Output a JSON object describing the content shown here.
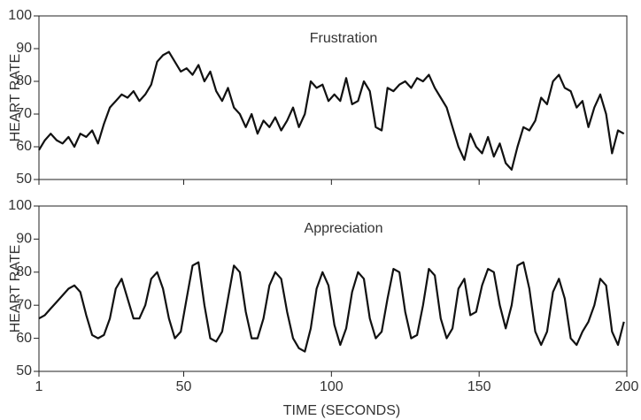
{
  "chart_data": [
    {
      "type": "line",
      "annotation": "Frustration",
      "ylabel": "HEART RATE",
      "xlim": [
        1,
        200
      ],
      "xticks": [
        1,
        50,
        100,
        150,
        200
      ],
      "ylim": [
        50,
        100
      ],
      "yticks": [
        50,
        60,
        70,
        80,
        90,
        100
      ],
      "x": [
        1,
        3,
        5,
        7,
        9,
        11,
        13,
        15,
        17,
        19,
        21,
        23,
        25,
        27,
        29,
        31,
        33,
        35,
        37,
        39,
        41,
        43,
        45,
        47,
        49,
        51,
        53,
        55,
        57,
        59,
        61,
        63,
        65,
        67,
        69,
        71,
        73,
        75,
        77,
        79,
        81,
        83,
        85,
        87,
        89,
        91,
        93,
        95,
        97,
        99,
        101,
        103,
        105,
        107,
        109,
        111,
        113,
        115,
        117,
        119,
        121,
        123,
        125,
        127,
        129,
        131,
        133,
        135,
        137,
        139,
        141,
        143,
        145,
        147,
        149,
        151,
        153,
        155,
        157,
        159,
        161,
        163,
        165,
        167,
        169,
        171,
        173,
        175,
        177,
        179,
        181,
        183,
        185,
        187,
        189,
        191,
        193,
        195,
        197,
        199
      ],
      "series": [
        {
          "color": "#111111",
          "values": [
            59,
            62,
            64,
            62,
            61,
            63,
            60,
            64,
            63,
            65,
            61,
            67,
            72,
            74,
            76,
            75,
            77,
            74,
            76,
            79,
            86,
            88,
            89,
            86,
            83,
            84,
            82,
            85,
            80,
            83,
            77,
            74,
            78,
            72,
            70,
            66,
            70,
            64,
            68,
            66,
            69,
            65,
            68,
            72,
            66,
            70,
            80,
            78,
            79,
            74,
            76,
            74,
            81,
            73,
            74,
            80,
            77,
            66,
            65,
            78,
            77,
            79,
            80,
            78,
            81,
            80,
            82,
            78,
            75,
            72,
            66,
            60,
            56,
            64,
            60,
            58,
            63,
            57,
            61,
            55,
            53,
            60,
            66,
            65,
            68,
            75,
            73,
            80,
            82,
            78,
            77,
            72,
            74,
            66,
            72,
            76,
            70,
            58,
            65,
            64
          ]
        }
      ]
    },
    {
      "type": "line",
      "annotation": "Appreciation",
      "ylabel": "HEART RATE",
      "xlabel": "TIME (SECONDS)",
      "xlim": [
        1,
        200
      ],
      "xticks": [
        1,
        50,
        100,
        150,
        200
      ],
      "ylim": [
        50,
        100
      ],
      "yticks": [
        50,
        60,
        70,
        80,
        90,
        100
      ],
      "x": [
        1,
        3,
        5,
        7,
        9,
        11,
        13,
        15,
        17,
        19,
        21,
        23,
        25,
        27,
        29,
        31,
        33,
        35,
        37,
        39,
        41,
        43,
        45,
        47,
        49,
        51,
        53,
        55,
        57,
        59,
        61,
        63,
        65,
        67,
        69,
        71,
        73,
        75,
        77,
        79,
        81,
        83,
        85,
        87,
        89,
        91,
        93,
        95,
        97,
        99,
        101,
        103,
        105,
        107,
        109,
        111,
        113,
        115,
        117,
        119,
        121,
        123,
        125,
        127,
        129,
        131,
        133,
        135,
        137,
        139,
        141,
        143,
        145,
        147,
        149,
        151,
        153,
        155,
        157,
        159,
        161,
        163,
        165,
        167,
        169,
        171,
        173,
        175,
        177,
        179,
        181,
        183,
        185,
        187,
        189,
        191,
        193,
        195,
        197,
        199
      ],
      "series": [
        {
          "color": "#111111",
          "values": [
            66,
            67,
            69,
            71,
            73,
            75,
            76,
            74,
            67,
            61,
            60,
            61,
            66,
            75,
            78,
            72,
            66,
            66,
            70,
            78,
            80,
            75,
            66,
            60,
            62,
            72,
            82,
            83,
            70,
            60,
            59,
            62,
            72,
            82,
            80,
            68,
            60,
            60,
            66,
            76,
            80,
            78,
            68,
            60,
            57,
            56,
            63,
            75,
            80,
            76,
            64,
            58,
            63,
            74,
            80,
            78,
            66,
            60,
            62,
            72,
            81,
            80,
            68,
            60,
            61,
            70,
            81,
            79,
            66,
            60,
            63,
            75,
            78,
            67,
            68,
            76,
            81,
            80,
            70,
            63,
            70,
            82,
            83,
            75,
            62,
            58,
            62,
            74,
            78,
            72,
            60,
            58,
            62,
            65,
            70,
            78,
            76,
            62,
            58,
            65
          ]
        }
      ]
    }
  ]
}
